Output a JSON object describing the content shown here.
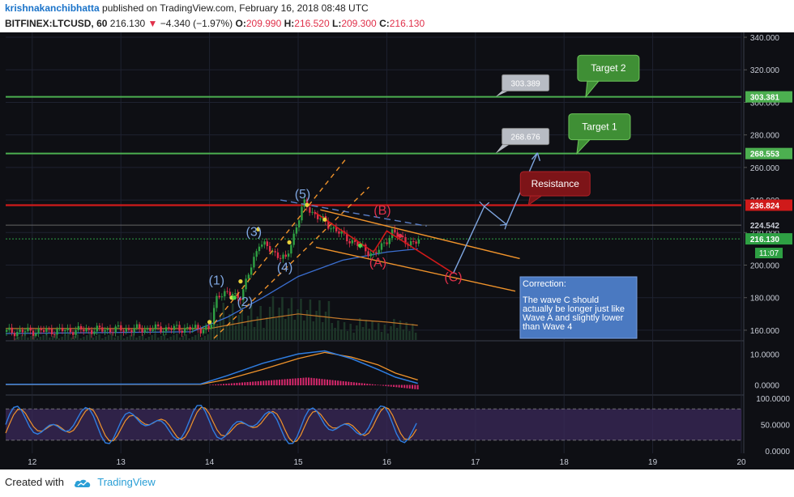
{
  "header": {
    "author": "krishnakanchibhatta",
    "published_text": "published on TradingView.com, February 16, 2018 08:48 UTC",
    "symbol": "BITFINEX:LTCUSD, 60",
    "last": "216.130",
    "change": "−4.340 (−1.97%)",
    "o_label": "O:",
    "o_value": "209.990",
    "h_label": "H:",
    "h_value": "216.520",
    "l_label": "L:",
    "l_value": "209.300",
    "c_label": "C:",
    "c_value": "216.130"
  },
  "footer": {
    "created_with": "Created with",
    "brand": "TradingView"
  },
  "colors": {
    "background": "#0e0f14",
    "up": "#2ea043",
    "down": "#e0304a",
    "target_line": "#4caf50",
    "resistance": "#d01a1a",
    "channel": "#f0932b"
  },
  "chart_data": {
    "type": "line",
    "title": "",
    "price_axis": {
      "min": 154,
      "max": 343,
      "ticks": [
        340,
        320,
        300,
        280,
        260,
        240,
        220,
        200,
        180,
        160
      ],
      "tick_labels": [
        "340.000",
        "320.000",
        "300.000",
        "280.000",
        "260.000",
        "240.000",
        "220.000",
        "200.000",
        "180.000",
        "160.000"
      ]
    },
    "time_axis": {
      "min": 11.7,
      "max": 20,
      "ticks": [
        12,
        13,
        14,
        15,
        16,
        17,
        18,
        19,
        20
      ],
      "tick_labels": [
        "12",
        "13",
        "14",
        "15",
        "16",
        "17",
        "18",
        "19",
        "20"
      ]
    },
    "levels": [
      {
        "name": "target2-line",
        "price": 303.381,
        "label": "303.381",
        "color": "#4caf50"
      },
      {
        "name": "target1-line",
        "price": 268.553,
        "label": "268.553",
        "color": "#4caf50"
      },
      {
        "name": "resistance-line",
        "price": 236.824,
        "label": "236.824",
        "color": "#d01a1a"
      },
      {
        "name": "level-224",
        "price": 224.542,
        "label": "224.542",
        "color": "#444444"
      },
      {
        "name": "last-price",
        "price": 216.13,
        "label": "216.130",
        "color": "#2ea043"
      }
    ],
    "countdown": "11:07",
    "price_series": [
      {
        "t": 11.7,
        "p": 159
      },
      {
        "t": 12.5,
        "p": 160
      },
      {
        "t": 13.5,
        "p": 161
      },
      {
        "t": 14.0,
        "p": 161
      },
      {
        "t": 14.08,
        "p": 183
      },
      {
        "t": 14.35,
        "p": 181
      },
      {
        "t": 14.55,
        "p": 214
      },
      {
        "t": 14.85,
        "p": 203
      },
      {
        "t": 15.05,
        "p": 238
      },
      {
        "t": 15.2,
        "p": 230
      },
      {
        "t": 15.5,
        "p": 218
      },
      {
        "t": 15.85,
        "p": 206
      },
      {
        "t": 16.05,
        "p": 220
      },
      {
        "t": 16.3,
        "p": 212
      },
      {
        "t": 16.35,
        "p": 216.13
      }
    ],
    "ma_series": [
      {
        "t": 11.7,
        "p": 158
      },
      {
        "t": 13.8,
        "p": 159
      },
      {
        "t": 14.2,
        "p": 168
      },
      {
        "t": 14.6,
        "p": 180
      },
      {
        "t": 15.0,
        "p": 193
      },
      {
        "t": 15.5,
        "p": 203
      },
      {
        "t": 16.0,
        "p": 208
      },
      {
        "t": 16.35,
        "p": 210
      }
    ],
    "volume_series": [
      {
        "t": 11.7,
        "p": 161
      },
      {
        "t": 14.0,
        "p": 161
      },
      {
        "t": 14.5,
        "p": 166
      },
      {
        "t": 15.0,
        "p": 170
      },
      {
        "t": 15.5,
        "p": 167
      },
      {
        "t": 16.0,
        "p": 165
      },
      {
        "t": 16.35,
        "p": 163
      }
    ],
    "wave_labels": [
      {
        "label": "(1)",
        "t": 14.08,
        "p": 188,
        "color": "#7fa6e0"
      },
      {
        "label": "(2)",
        "t": 14.4,
        "p": 175,
        "color": "#7fa6e0"
      },
      {
        "label": "(3)",
        "t": 14.5,
        "p": 218,
        "color": "#7fa6e0"
      },
      {
        "label": "(4)",
        "t": 14.85,
        "p": 196,
        "color": "#7fa6e0"
      },
      {
        "label": "(5)",
        "t": 15.05,
        "p": 241,
        "color": "#7fa6e0"
      },
      {
        "label": "(A)",
        "t": 15.9,
        "p": 199,
        "color": "#e0304a"
      },
      {
        "label": "(B)",
        "t": 15.95,
        "p": 231,
        "color": "#e0304a"
      },
      {
        "label": "(C)",
        "t": 16.75,
        "p": 190,
        "color": "#e0304a"
      }
    ],
    "callouts": [
      {
        "name": "price-tag-303",
        "label": "303.389",
        "t": 17.3,
        "p": 313
      },
      {
        "name": "price-tag-268",
        "label": "268.676",
        "t": 17.3,
        "p": 280
      }
    ],
    "targets": [
      {
        "name": "target2-callout",
        "label": "Target 2",
        "t": 18.5,
        "p": 321
      },
      {
        "name": "target1-callout",
        "label": "Target 1",
        "t": 18.4,
        "p": 285
      },
      {
        "name": "resistance-callout",
        "label": "Resistance",
        "t": 17.9,
        "p": 250
      }
    ],
    "correction_note": {
      "title": "Correction:",
      "lines": [
        "The wave C should",
        "actually be longer just like",
        "Wave A and slightly lower",
        "than Wave 4"
      ]
    },
    "macd": {
      "ticks": [
        10,
        0
      ],
      "tick_labels": [
        "10.0000",
        "0.0000"
      ],
      "min": -3,
      "max": 14
    },
    "stoch": {
      "ticks": [
        100,
        50,
        0
      ],
      "tick_labels": [
        "100.0000",
        "50.0000",
        "0.0000"
      ],
      "min": -5,
      "max": 105,
      "bands": [
        80,
        20
      ]
    }
  }
}
